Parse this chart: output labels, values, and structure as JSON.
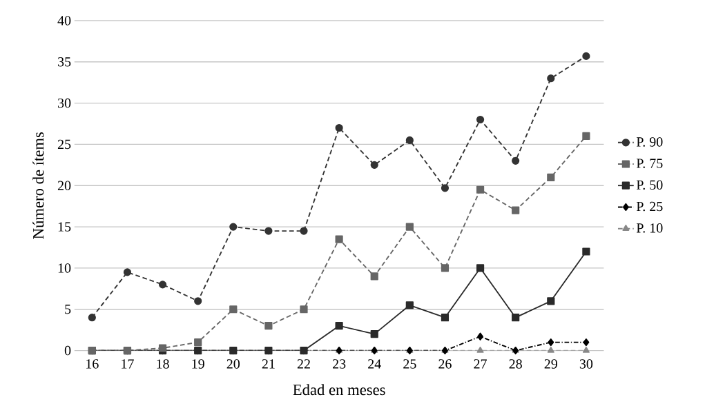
{
  "chart_data": {
    "type": "line",
    "xlabel": "Edad en meses",
    "ylabel": "Número de ítems",
    "categories": [
      "16",
      "17",
      "18",
      "19",
      "20",
      "21",
      "22",
      "23",
      "24",
      "25",
      "26",
      "27",
      "28",
      "29",
      "30"
    ],
    "ylim": [
      0,
      40
    ],
    "yticks": [
      0,
      5,
      10,
      15,
      20,
      25,
      30,
      35,
      40
    ],
    "grid": "y",
    "legend": "right",
    "series": [
      {
        "name": "P. 90",
        "color": "#333333",
        "marker": "circle",
        "line_style": "dashed",
        "values": [
          4,
          9.5,
          8,
          6,
          15,
          14.5,
          14.5,
          27,
          22.5,
          25.5,
          19.7,
          28,
          23,
          33,
          35.7
        ]
      },
      {
        "name": "P. 75",
        "color": "#666666",
        "marker": "square",
        "line_style": "dashed",
        "values": [
          0,
          0,
          0.3,
          1,
          5,
          3,
          5,
          13.5,
          9,
          15,
          10,
          19.5,
          17,
          21,
          26
        ]
      },
      {
        "name": "P. 50",
        "color": "#2a2a2a",
        "marker": "square",
        "line_style": "solid",
        "values": [
          0,
          0,
          0,
          0,
          0,
          0,
          0,
          3,
          2,
          5.5,
          4,
          10,
          4,
          6,
          12
        ]
      },
      {
        "name": "P. 25",
        "color": "#000000",
        "marker": "diamond",
        "line_style": "dotted",
        "values": [
          0,
          0,
          0,
          0,
          0,
          0,
          0,
          0,
          0,
          0,
          0,
          1.7,
          0,
          1,
          1
        ]
      },
      {
        "name": "P. 10",
        "color": "#888888",
        "marker": "triangle",
        "line_style": "dashed",
        "values": [
          0,
          0,
          0,
          0,
          0,
          0,
          0,
          0,
          0,
          0,
          0,
          0,
          0,
          0,
          0
        ]
      }
    ]
  }
}
